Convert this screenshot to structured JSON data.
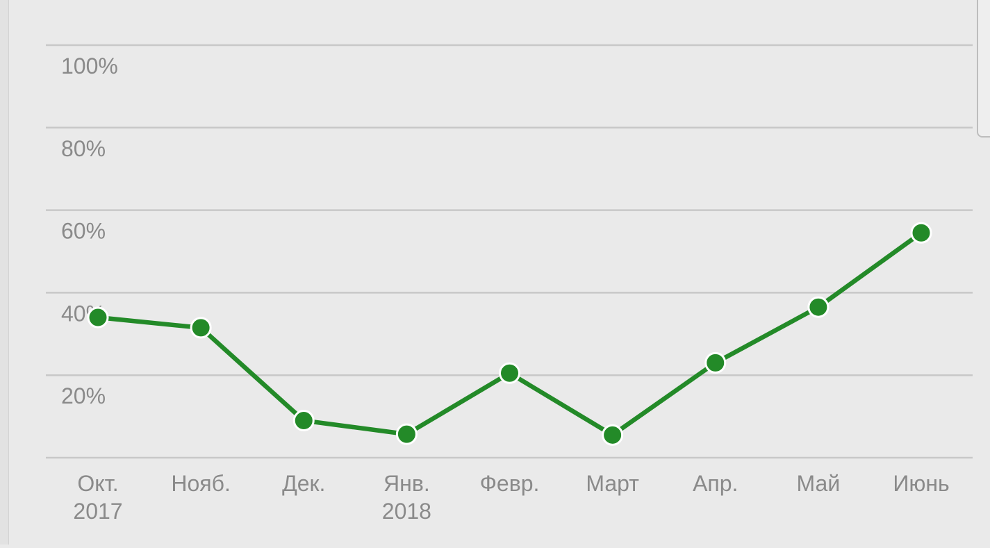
{
  "chart_data": {
    "type": "line",
    "categories": [
      [
        "Окт.",
        "2017"
      ],
      [
        "Нояб."
      ],
      [
        "Дек."
      ],
      [
        "Янв.",
        "2018"
      ],
      [
        "Февр."
      ],
      [
        "Март"
      ],
      [
        "Апр."
      ],
      [
        "Май"
      ],
      [
        "Июнь"
      ]
    ],
    "values": [
      34,
      31.5,
      9,
      5.7,
      20.5,
      5.5,
      23,
      36.5,
      54.5
    ],
    "y_ticks": [
      {
        "value": 20,
        "label": "20%"
      },
      {
        "value": 40,
        "label": "40%"
      },
      {
        "value": 60,
        "label": "60%"
      },
      {
        "value": 80,
        "label": "80%"
      },
      {
        "value": 100,
        "label": "100%"
      }
    ],
    "ylim": [
      0,
      100
    ],
    "grid": true,
    "legend": "none",
    "colors": {
      "series": "#238a28",
      "grid": "#c8c8c8",
      "label": "#8a8a8a",
      "background": "#eaeaea"
    }
  }
}
